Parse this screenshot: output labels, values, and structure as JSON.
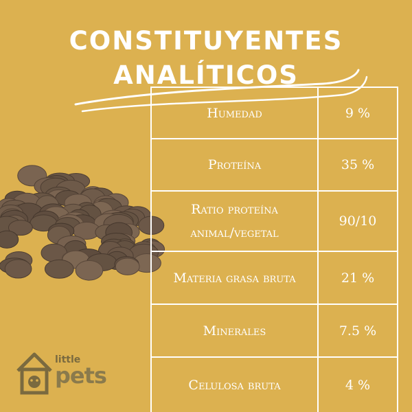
{
  "title": {
    "line1": "CONSTITUYENTES",
    "line2": "ANALÍTICOS"
  },
  "colors": {
    "background": "#dcb150",
    "text": "#ffffff",
    "kibble": "#6e5a49",
    "logo": "#7a6a3f"
  },
  "table": {
    "rows": [
      {
        "name": "Humedad",
        "value": "9 %"
      },
      {
        "name": "Proteína",
        "value": "35 %"
      },
      {
        "name": "Ratio proteína animal/vegetal",
        "value": "90/10"
      },
      {
        "name": "Materia grasa bruta",
        "value": "21 %"
      },
      {
        "name": "Minerales",
        "value": "7.5 %"
      },
      {
        "name": "Celulosa bruta",
        "value": "4 %"
      }
    ]
  },
  "logo": {
    "line1": "little",
    "line2": "pets",
    "icon": "house-dog-icon"
  },
  "decor": {
    "kibble": "kibble-pile-image",
    "swoosh": "swoosh-underline"
  }
}
